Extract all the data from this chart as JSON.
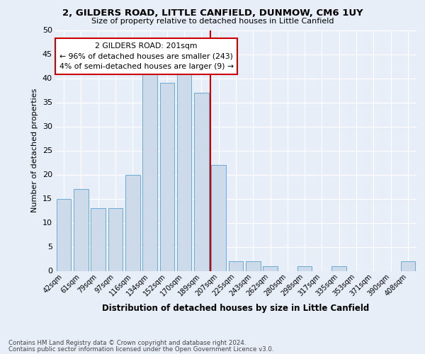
{
  "title1": "2, GILDERS ROAD, LITTLE CANFIELD, DUNMOW, CM6 1UY",
  "title2": "Size of property relative to detached houses in Little Canfield",
  "xlabel": "Distribution of detached houses by size in Little Canfield",
  "ylabel": "Number of detached properties",
  "categories": [
    "42sqm",
    "61sqm",
    "79sqm",
    "97sqm",
    "116sqm",
    "134sqm",
    "152sqm",
    "170sqm",
    "189sqm",
    "207sqm",
    "225sqm",
    "243sqm",
    "262sqm",
    "280sqm",
    "298sqm",
    "317sqm",
    "335sqm",
    "353sqm",
    "371sqm",
    "390sqm",
    "408sqm"
  ],
  "values": [
    15,
    17,
    13,
    13,
    20,
    41,
    39,
    42,
    37,
    22,
    2,
    2,
    1,
    0,
    1,
    0,
    1,
    0,
    0,
    0,
    2
  ],
  "bar_color": "#ccdaea",
  "bar_edge_color": "#6aaad4",
  "marker_color": "#cc0000",
  "annotation_title": "2 GILDERS ROAD: 201sqm",
  "annotation_line1": "← 96% of detached houses are smaller (243)",
  "annotation_line2": "4% of semi-detached houses are larger (9) →",
  "annotation_box_color": "#cc0000",
  "background_color": "#e8eef8",
  "grid_color": "#ffffff",
  "footnote1": "Contains HM Land Registry data © Crown copyright and database right 2024.",
  "footnote2": "Contains public sector information licensed under the Open Government Licence v3.0.",
  "ylim": [
    0,
    50
  ],
  "yticks": [
    0,
    5,
    10,
    15,
    20,
    25,
    30,
    35,
    40,
    45,
    50
  ]
}
